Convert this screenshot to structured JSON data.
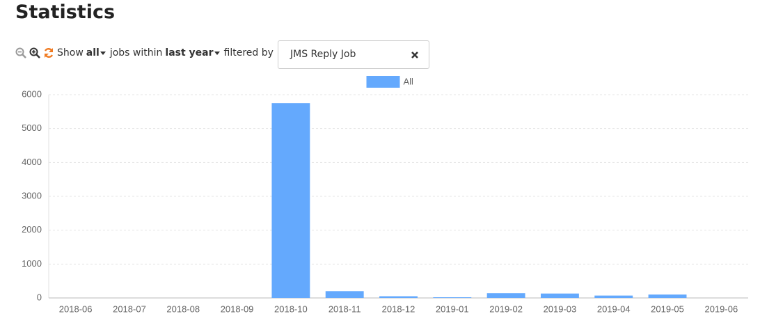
{
  "title": "Statistics",
  "toolbar": {
    "show": "Show",
    "scope": "all",
    "within": "jobs within",
    "period": "last year",
    "filtered": "filtered by",
    "filter": "JMS Reply Job"
  },
  "chart_data": {
    "type": "bar",
    "categories": [
      "2018-06",
      "2018-07",
      "2018-08",
      "2018-09",
      "2018-10",
      "2018-11",
      "2018-12",
      "2019-01",
      "2019-02",
      "2019-03",
      "2019-04",
      "2019-05",
      "2019-06"
    ],
    "series": [
      {
        "name": "All",
        "color": "#64a9fd",
        "values": [
          0,
          0,
          0,
          0,
          5750,
          200,
          50,
          20,
          140,
          130,
          70,
          100,
          0
        ]
      }
    ],
    "ylim": [
      0,
      6000
    ],
    "yticks": [
      0,
      1000,
      2000,
      3000,
      4000,
      5000,
      6000
    ],
    "grid": true,
    "legend": "top"
  }
}
